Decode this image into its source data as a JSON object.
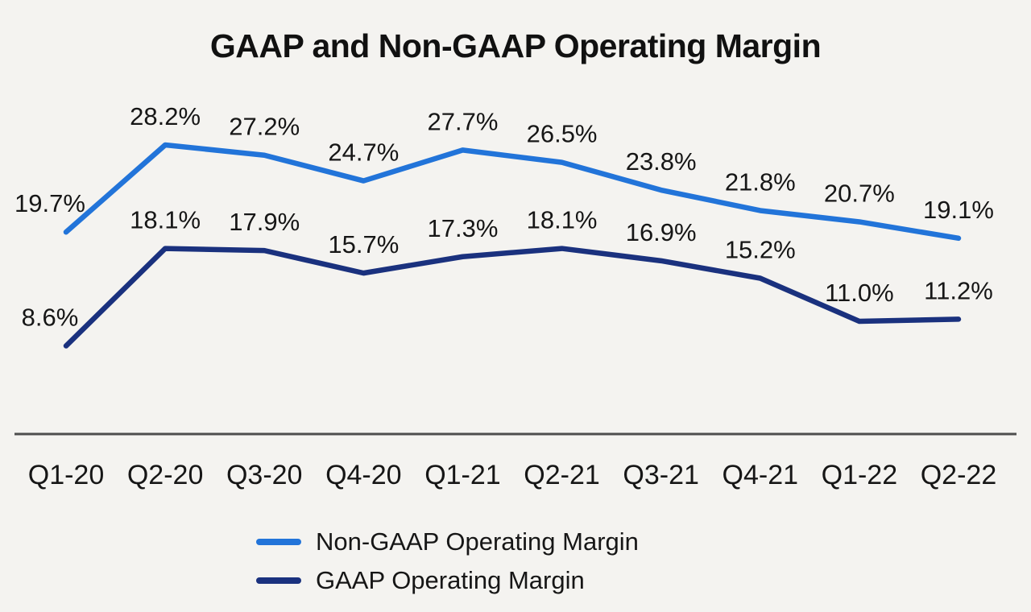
{
  "chart_data": {
    "type": "line",
    "title": "GAAP and Non-GAAP Operating Margin",
    "categories": [
      "Q1-20",
      "Q2-20",
      "Q3-20",
      "Q4-20",
      "Q1-21",
      "Q2-21",
      "Q3-21",
      "Q4-21",
      "Q1-22",
      "Q2-22"
    ],
    "series": [
      {
        "name": "Non-GAAP Operating Margin",
        "key": "non-gaap",
        "color": "#2274D9",
        "values": [
          19.7,
          28.2,
          27.2,
          24.7,
          27.7,
          26.5,
          23.8,
          21.8,
          20.7,
          19.1
        ],
        "labels": [
          "19.7%",
          "28.2%",
          "27.2%",
          "24.7%",
          "27.7%",
          "26.5%",
          "23.8%",
          "21.8%",
          "20.7%",
          "19.1%"
        ]
      },
      {
        "name": "GAAP Operating Margin",
        "key": "gaap",
        "color": "#1A317E",
        "values": [
          8.6,
          18.1,
          17.9,
          15.7,
          17.3,
          18.1,
          16.9,
          15.2,
          11.0,
          11.2
        ],
        "labels": [
          "8.6%",
          "18.1%",
          "17.9%",
          "15.7%",
          "17.3%",
          "18.1%",
          "16.9%",
          "15.2%",
          "11.0%",
          "11.2%"
        ]
      }
    ],
    "ylim": [
      0,
      30
    ],
    "grid": false,
    "data_labels": true,
    "legend_position": "bottom",
    "background_color": "#F4F3F0",
    "axis_color": "#4D4D4D",
    "text_color": "#161616"
  }
}
